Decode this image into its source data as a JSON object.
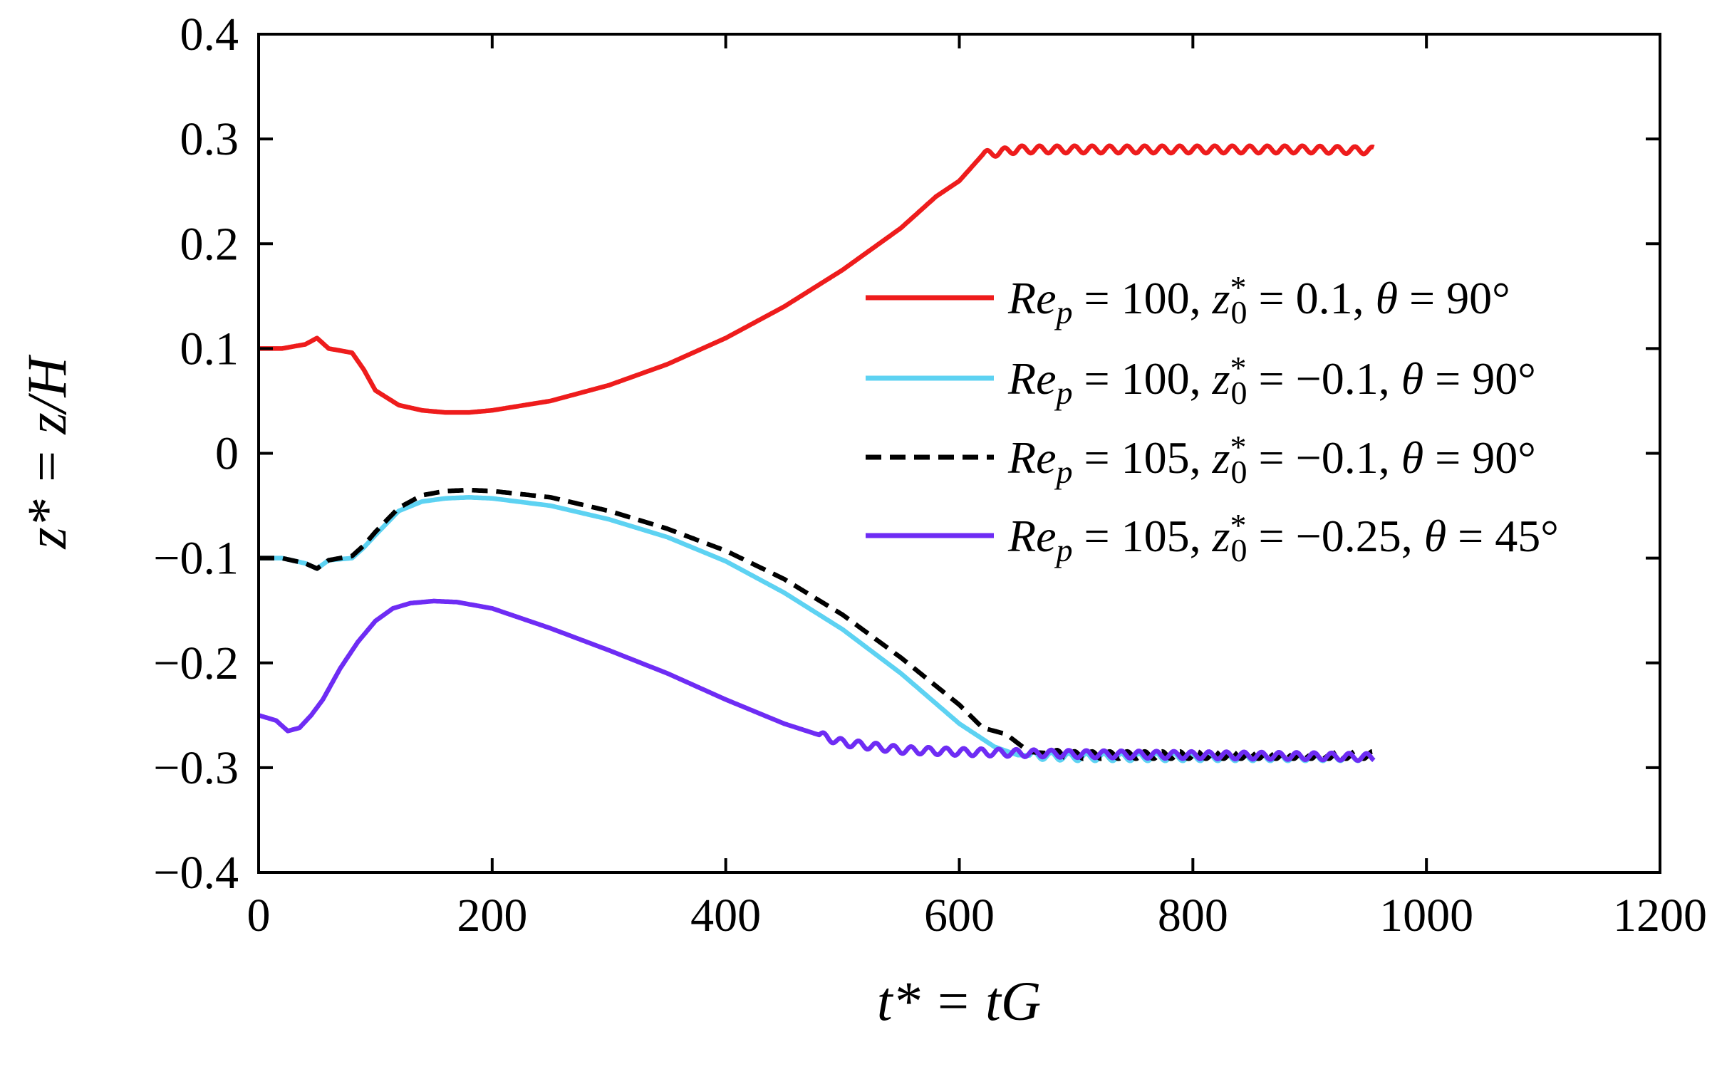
{
  "chart_data": {
    "type": "line",
    "xlabel": "t* = tG",
    "ylabel": "z* = z/H",
    "xlim": [
      0,
      1200
    ],
    "ylim": [
      -0.4,
      0.4
    ],
    "xticks": [
      0,
      200,
      400,
      600,
      800,
      1000,
      1200
    ],
    "xtick_labels": [
      "0",
      "200",
      "400",
      "600",
      "800",
      "1000",
      "1200"
    ],
    "yticks": [
      -0.4,
      -0.3,
      -0.2,
      -0.1,
      0,
      0.1,
      0.2,
      0.3,
      0.4
    ],
    "ytick_labels": [
      "−0.4",
      "−0.3",
      "−0.2",
      "−0.1",
      "0",
      "0.1",
      "0.2",
      "0.3",
      "0.4"
    ],
    "grid": false,
    "legend_position": "center-right",
    "series": [
      {
        "name": "Re_p = 100, z*_0 = 0.1, θ = 90°",
        "legend": {
          "re": "100",
          "z0": "0.1",
          "theta": "90°"
        },
        "color": "#ee1c1c",
        "dash": "solid",
        "oscillation_start": 620,
        "x": [
          0,
          20,
          40,
          50,
          60,
          80,
          90,
          100,
          120,
          140,
          160,
          180,
          200,
          250,
          300,
          350,
          400,
          450,
          500,
          550,
          580,
          600,
          620,
          650,
          700,
          800,
          900,
          955
        ],
        "y": [
          0.1,
          0.1,
          0.104,
          0.11,
          0.1,
          0.096,
          0.08,
          0.06,
          0.046,
          0.041,
          0.039,
          0.039,
          0.041,
          0.05,
          0.065,
          0.085,
          0.11,
          0.14,
          0.175,
          0.215,
          0.245,
          0.26,
          0.285,
          0.29,
          0.29,
          0.29,
          0.29,
          0.289
        ]
      },
      {
        "name": "Re_p = 100, z*_0 = −0.1, θ = 90°",
        "legend": {
          "re": "100",
          "z0": "−0.1",
          "theta": "90°"
        },
        "color": "#5dd2f2",
        "dash": "solid",
        "oscillation_start": 660,
        "x": [
          0,
          20,
          40,
          50,
          60,
          80,
          90,
          100,
          120,
          140,
          160,
          180,
          200,
          250,
          300,
          350,
          400,
          450,
          500,
          550,
          600,
          630,
          650,
          700,
          800,
          900,
          955
        ],
        "y": [
          -0.1,
          -0.1,
          -0.105,
          -0.11,
          -0.102,
          -0.1,
          -0.09,
          -0.078,
          -0.055,
          -0.046,
          -0.043,
          -0.042,
          -0.043,
          -0.05,
          -0.063,
          -0.08,
          -0.103,
          -0.133,
          -0.168,
          -0.21,
          -0.258,
          -0.28,
          -0.288,
          -0.29,
          -0.29,
          -0.29,
          -0.29
        ]
      },
      {
        "name": "Re_p = 105, z*_0 = −0.1, θ = 90°",
        "legend": {
          "re": "105",
          "z0": "−0.1",
          "theta": "90°"
        },
        "color": "#000000",
        "dash": "dashed",
        "oscillation_start": 680,
        "x": [
          0,
          20,
          40,
          50,
          60,
          80,
          90,
          100,
          120,
          140,
          160,
          180,
          200,
          250,
          300,
          350,
          400,
          450,
          500,
          550,
          600,
          620,
          640,
          660,
          700,
          800,
          900,
          955
        ],
        "y": [
          -0.1,
          -0.1,
          -0.105,
          -0.11,
          -0.102,
          -0.098,
          -0.088,
          -0.075,
          -0.052,
          -0.04,
          -0.036,
          -0.035,
          -0.036,
          -0.042,
          -0.055,
          -0.072,
          -0.093,
          -0.12,
          -0.154,
          -0.195,
          -0.24,
          -0.262,
          -0.268,
          -0.285,
          -0.288,
          -0.288,
          -0.288,
          -0.288
        ]
      },
      {
        "name": "Re_p = 105, z*_0 = −0.25, θ = 45°",
        "legend": {
          "re": "105",
          "z0": "−0.25",
          "theta": "45°"
        },
        "color": "#6e2cf4",
        "dash": "solid",
        "oscillation_start": 480,
        "x": [
          0,
          15,
          25,
          35,
          45,
          55,
          70,
          85,
          100,
          115,
          130,
          150,
          170,
          200,
          250,
          300,
          350,
          400,
          450,
          500,
          550,
          600,
          700,
          800,
          900,
          955
        ],
        "y": [
          -0.25,
          -0.255,
          -0.265,
          -0.262,
          -0.25,
          -0.235,
          -0.205,
          -0.18,
          -0.16,
          -0.148,
          -0.143,
          -0.141,
          -0.142,
          -0.148,
          -0.167,
          -0.188,
          -0.21,
          -0.235,
          -0.258,
          -0.276,
          -0.283,
          -0.285,
          -0.287,
          -0.288,
          -0.289,
          -0.29
        ]
      }
    ]
  }
}
